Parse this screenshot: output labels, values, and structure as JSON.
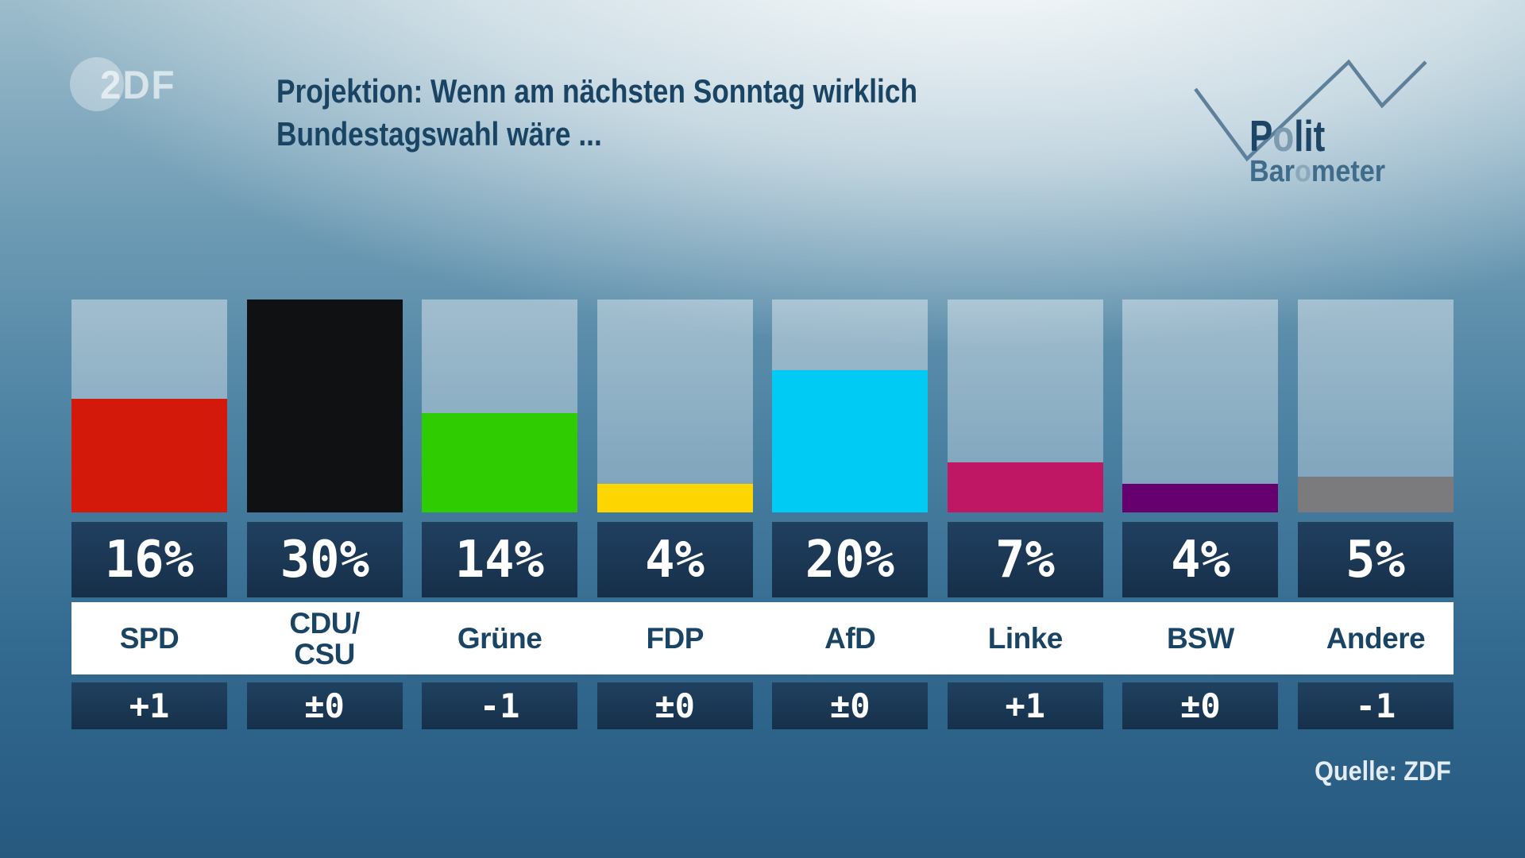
{
  "header": {
    "zdf_logo_text": "2DF",
    "title_line1": "Projektion: Wenn am nächsten Sonntag wirklich",
    "title_line2": "Bundestagswahl wäre ...",
    "brand": {
      "polit_start": "P",
      "polit_accent": "o",
      "polit_end": "lit",
      "baro_start": "Bar",
      "baro_accent": "o",
      "baro_end": "meter"
    }
  },
  "footer": {
    "source": "Quelle: ZDF"
  },
  "chart_data": {
    "type": "bar",
    "title": "Projektion: Wenn am nächsten Sonntag wirklich Bundestagswahl wäre ...",
    "unit": "%",
    "ylim": [
      0,
      30
    ],
    "grid": false,
    "categories": [
      "SPD",
      "CDU/CSU",
      "Grüne",
      "FDP",
      "AfD",
      "Linke",
      "BSW",
      "Andere"
    ],
    "values": [
      16,
      30,
      14,
      4,
      20,
      7,
      4,
      5
    ],
    "value_labels": [
      "16%",
      "30%",
      "14%",
      "4%",
      "20%",
      "7%",
      "4%",
      "5%"
    ],
    "changes": [
      "+1",
      "±0",
      "-1",
      "±0",
      "±0",
      "+1",
      "±0",
      "-1"
    ],
    "bar_colors": [
      "#d2190a",
      "#0f1112",
      "#2fcc02",
      "#fdd500",
      "#00cbf5",
      "#c01765",
      "#65006e",
      "#7b7b7d"
    ],
    "source": "Quelle: ZDF"
  },
  "parties": [
    {
      "name": "SPD",
      "label_lines": [
        "SPD"
      ],
      "value": 16,
      "value_label": "16%",
      "change": "+1",
      "color": "#d2190a"
    },
    {
      "name": "CDU/CSU",
      "label_lines": [
        "CDU/",
        "CSU"
      ],
      "value": 30,
      "value_label": "30%",
      "change": "±0",
      "color": "#0f1112"
    },
    {
      "name": "Grüne",
      "label_lines": [
        "Grüne"
      ],
      "value": 14,
      "value_label": "14%",
      "change": "-1",
      "color": "#2fcc02"
    },
    {
      "name": "FDP",
      "label_lines": [
        "FDP"
      ],
      "value": 4,
      "value_label": "4%",
      "change": "±0",
      "color": "#fdd500"
    },
    {
      "name": "AfD",
      "label_lines": [
        "AfD"
      ],
      "value": 20,
      "value_label": "20%",
      "change": "±0",
      "color": "#00cbf5"
    },
    {
      "name": "Linke",
      "label_lines": [
        "Linke"
      ],
      "value": 7,
      "value_label": "7%",
      "change": "+1",
      "color": "#c01765"
    },
    {
      "name": "BSW",
      "label_lines": [
        "BSW"
      ],
      "value": 4,
      "value_label": "4%",
      "change": "±0",
      "color": "#65006e"
    },
    {
      "name": "Andere",
      "label_lines": [
        "Andere"
      ],
      "value": 5,
      "value_label": "5%",
      "change": "-1",
      "color": "#7b7b7d"
    }
  ]
}
